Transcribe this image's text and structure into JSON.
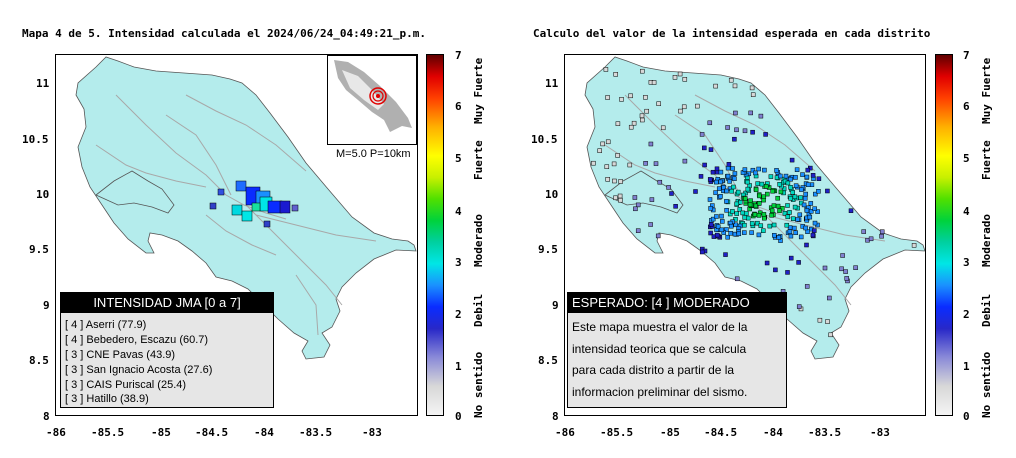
{
  "left_panel": {
    "title": "Mapa 4 de 5. Intensidad calculada el 2024/06/24_04:49:21_p.m.",
    "x_ticks": [
      "-86",
      "-85.5",
      "-85",
      "-84.5",
      "-84",
      "-83.5",
      "-83"
    ],
    "y_ticks": [
      "11",
      "10.5",
      "10",
      "9.5",
      "9",
      "8.5",
      "8"
    ],
    "inset_caption": "M=5.0 P=10km",
    "legend": {
      "header": "INTENSIDAD JMA [0 a 7]",
      "items": [
        "[ 4 ]  Aserri (77.9)",
        "[ 4 ]  Bebedero, Escazu (60.7)",
        "[ 3 ]  CNE Pavas (43.9)",
        "[ 3 ]  San Ignacio Acosta (27.6)",
        "[ 3 ]  CAIS Puriscal (25.4)",
        "[ 3 ]  Hatillo (38.9)"
      ]
    }
  },
  "right_panel": {
    "title": "Calculo del valor de la intensidad esperada en cada distrito",
    "x_ticks": [
      "-86",
      "-85.5",
      "-85",
      "-84.5",
      "-84",
      "-83.5",
      "-83"
    ],
    "y_ticks": [
      "11",
      "10.5",
      "10",
      "9.5",
      "9",
      "8.5",
      "8"
    ],
    "legend": {
      "header": "ESPERADO: [4 ] MODERADO",
      "text_lines": [
        "Este mapa muestra el valor de la",
        "intensidad teorica que se calcula",
        "para cada distrito a partir de la",
        "informacion preliminar del sismo."
      ]
    }
  },
  "colorbar": {
    "numbers": [
      "7",
      "6",
      "5",
      "4",
      "3",
      "2",
      "1",
      "0"
    ],
    "labels": [
      "Muy Fuerte",
      "Fuerte",
      "Moderado",
      "Debil",
      "No sentido"
    ]
  },
  "colors": {
    "land": "#b4ecec",
    "roads": "#a8a8a8",
    "legend_header": "#000000",
    "legend_bg": "#e6e6e6"
  }
}
